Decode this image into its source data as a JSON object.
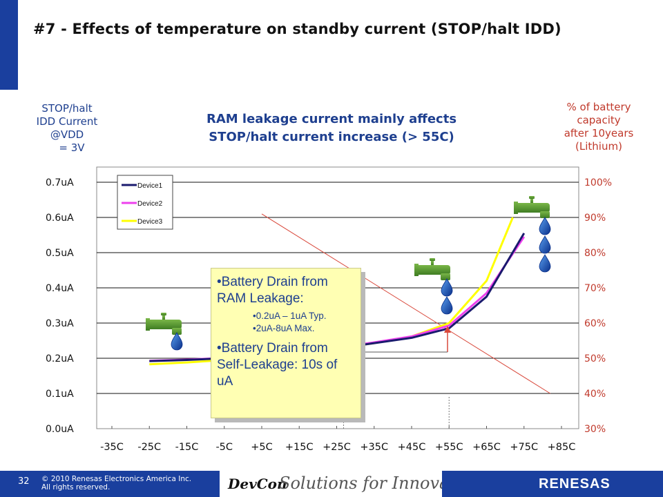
{
  "title": "#7 - Effects of temperature on standby current (STOP/halt IDD)",
  "left_axis_title": [
    "STOP/halt",
    "IDD Current",
    "@VDD",
    "= 3V"
  ],
  "right_axis_title": [
    "% of battery",
    "capacity",
    "after 10years",
    "(Lithium)"
  ],
  "subtitle": [
    "RAM leakage current mainly affects",
    "STOP/halt current increase (> 55C)"
  ],
  "callout": {
    "heading1": "•Battery Drain from RAM Leakage:",
    "items1": [
      "•0.2uA – 1uA Typ.",
      "•2uA-8uA Max."
    ],
    "heading2": "•Battery Drain from Self-Leakage: 10s of uA"
  },
  "footer": {
    "page": "32",
    "copyright": [
      "© 2010 Renesas Electronics America Inc.",
      "All rights reserved."
    ],
    "devcon": "DevCon",
    "tagline": "Solutions for Innovation",
    "brand": "RENESAS"
  },
  "chart_data": {
    "type": "line",
    "categories": [
      "-35C",
      "-25C",
      "-15C",
      "-5C",
      "+5C",
      "+15C",
      "+25C",
      "+35C",
      "+45C",
      "+55C",
      "+65C",
      "+75C",
      "+85C"
    ],
    "y_ticks": [
      "0.0uA",
      "0.1uA",
      "0.2uA",
      "0.3uA",
      "0.4uA",
      "0.5uA",
      "0.6uA",
      "0.7uA"
    ],
    "ylim": [
      0,
      0.7
    ],
    "y2_ticks": [
      "30%",
      "40%",
      "50%",
      "60%",
      "70%",
      "80%",
      "90%",
      "100%"
    ],
    "y2lim": [
      30,
      100
    ],
    "legend_position": "top-left",
    "grid": true,
    "series": [
      {
        "name": "Device1",
        "color": "#1a1a6e",
        "x": [
          -25,
          -15,
          -5,
          5,
          15,
          25,
          35,
          45,
          55,
          65,
          75
        ],
        "y": [
          0.192,
          0.195,
          0.2,
          0.207,
          0.215,
          0.228,
          0.243,
          0.258,
          0.285,
          0.375,
          0.555
        ]
      },
      {
        "name": "Device2",
        "color": "#ee40ee",
        "x": [
          -25,
          -15,
          -5,
          5,
          15,
          25,
          35,
          45,
          55,
          65,
          75
        ],
        "y": [
          0.193,
          0.196,
          0.201,
          0.208,
          0.217,
          0.23,
          0.245,
          0.262,
          0.293,
          0.385,
          0.545
        ]
      },
      {
        "name": "Device3",
        "color": "#ffff00",
        "x": [
          -25,
          -15,
          -5,
          5,
          15,
          25,
          35,
          45,
          55,
          65,
          72
        ],
        "y": [
          0.183,
          0.188,
          0.195,
          0.203,
          0.213,
          0.227,
          0.243,
          0.262,
          0.3,
          0.42,
          0.6
        ]
      }
    ],
    "battery_line": {
      "color": "#d9483b",
      "x": [
        5,
        82
      ],
      "y2": [
        91,
        40
      ]
    }
  }
}
